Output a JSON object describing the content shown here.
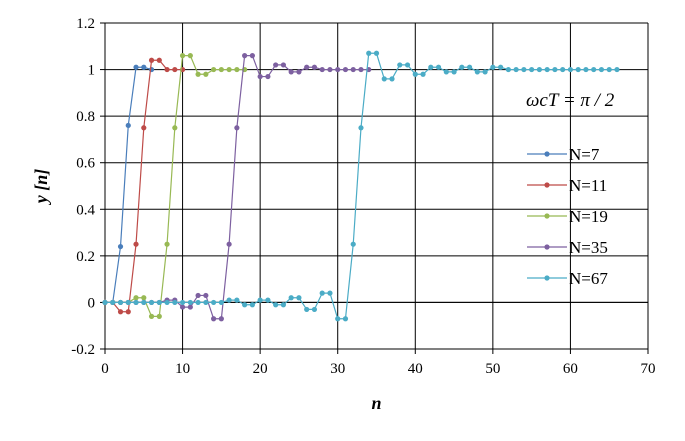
{
  "chart_data": {
    "type": "line",
    "xlabel": "n",
    "ylabel": "y [n]",
    "xlim": [
      0,
      70
    ],
    "ylim": [
      -0.2,
      1.2
    ],
    "xticks": [
      0,
      10,
      20,
      30,
      40,
      50,
      60,
      70
    ],
    "yticks": [
      -0.2,
      0,
      0.2,
      0.4,
      0.6,
      0.8,
      1,
      1.2
    ],
    "xtick_labels": [
      "0",
      "10",
      "20",
      "30",
      "40",
      "50",
      "60",
      "70"
    ],
    "ytick_labels": [
      "-0.2",
      "0",
      "0.2",
      "0.4",
      "0.6",
      "0.8",
      "1",
      "1.2"
    ],
    "grid": true,
    "legend_position": "right",
    "annotation": "ωcT = π / 2",
    "series": [
      {
        "name": "N=7",
        "color": "#4a7ebb",
        "x": [
          0,
          1,
          2,
          3,
          4,
          5,
          6
        ],
        "y": [
          0,
          0,
          0.24,
          0.76,
          1.01,
          1.01,
          1.0
        ]
      },
      {
        "name": "N=11",
        "color": "#be4b48",
        "x": [
          0,
          1,
          2,
          3,
          4,
          5,
          6,
          7,
          8,
          9,
          10
        ],
        "y": [
          0,
          0,
          -0.04,
          -0.04,
          0.25,
          0.75,
          1.04,
          1.04,
          1.0,
          1.0,
          1.0
        ]
      },
      {
        "name": "N=19",
        "color": "#98b954",
        "x": [
          0,
          1,
          2,
          3,
          4,
          5,
          6,
          7,
          8,
          9,
          10,
          11,
          12,
          13,
          14,
          15,
          16,
          17,
          18
        ],
        "y": [
          0,
          0,
          0,
          0,
          0.02,
          0.02,
          -0.06,
          -0.06,
          0.25,
          0.75,
          1.06,
          1.06,
          0.98,
          0.98,
          1.0,
          1.0,
          1.0,
          1.0,
          1.0
        ]
      },
      {
        "name": "N=35",
        "color": "#7d60a0",
        "x": [
          0,
          1,
          2,
          3,
          4,
          5,
          6,
          7,
          8,
          9,
          10,
          11,
          12,
          13,
          14,
          15,
          16,
          17,
          18,
          19,
          20,
          21,
          22,
          23,
          24,
          25,
          26,
          27,
          28,
          29,
          30,
          31,
          32,
          33,
          34
        ],
        "y": [
          0,
          0,
          0,
          0,
          0,
          0,
          0,
          0,
          0.01,
          0.01,
          -0.02,
          -0.02,
          0.03,
          0.03,
          -0.07,
          -0.07,
          0.25,
          0.75,
          1.06,
          1.06,
          0.97,
          0.97,
          1.02,
          1.02,
          0.99,
          0.99,
          1.01,
          1.01,
          1.0,
          1.0,
          1.0,
          1.0,
          1.0,
          1.0,
          1.0
        ]
      },
      {
        "name": "N=67",
        "color": "#4bacc6",
        "x": [
          0,
          1,
          2,
          3,
          4,
          5,
          6,
          7,
          8,
          9,
          10,
          11,
          12,
          13,
          14,
          15,
          16,
          17,
          18,
          19,
          20,
          21,
          22,
          23,
          24,
          25,
          26,
          27,
          28,
          29,
          30,
          31,
          32,
          33,
          34,
          35,
          36,
          37,
          38,
          39,
          40,
          41,
          42,
          43,
          44,
          45,
          46,
          47,
          48,
          49,
          50,
          51,
          52,
          53,
          54,
          55,
          56,
          57,
          58,
          59,
          60,
          61,
          62,
          63,
          64,
          65,
          66
        ],
        "y": [
          0,
          0,
          0,
          0,
          0,
          0,
          0,
          0,
          0,
          0,
          0,
          0,
          0,
          0,
          0,
          0,
          0.01,
          0.01,
          -0.01,
          -0.01,
          0.01,
          0.01,
          -0.01,
          -0.01,
          0.02,
          0.02,
          -0.03,
          -0.03,
          0.04,
          0.04,
          -0.07,
          -0.07,
          0.25,
          0.75,
          1.07,
          1.07,
          0.96,
          0.96,
          1.02,
          1.02,
          0.98,
          0.98,
          1.01,
          1.01,
          0.99,
          0.99,
          1.01,
          1.01,
          0.99,
          0.99,
          1.01,
          1.01,
          1.0,
          1.0,
          1.0,
          1.0,
          1.0,
          1.0,
          1.0,
          1.0,
          1.0,
          1.0,
          1.0,
          1.0,
          1.0,
          1.0,
          1.0
        ]
      }
    ]
  }
}
